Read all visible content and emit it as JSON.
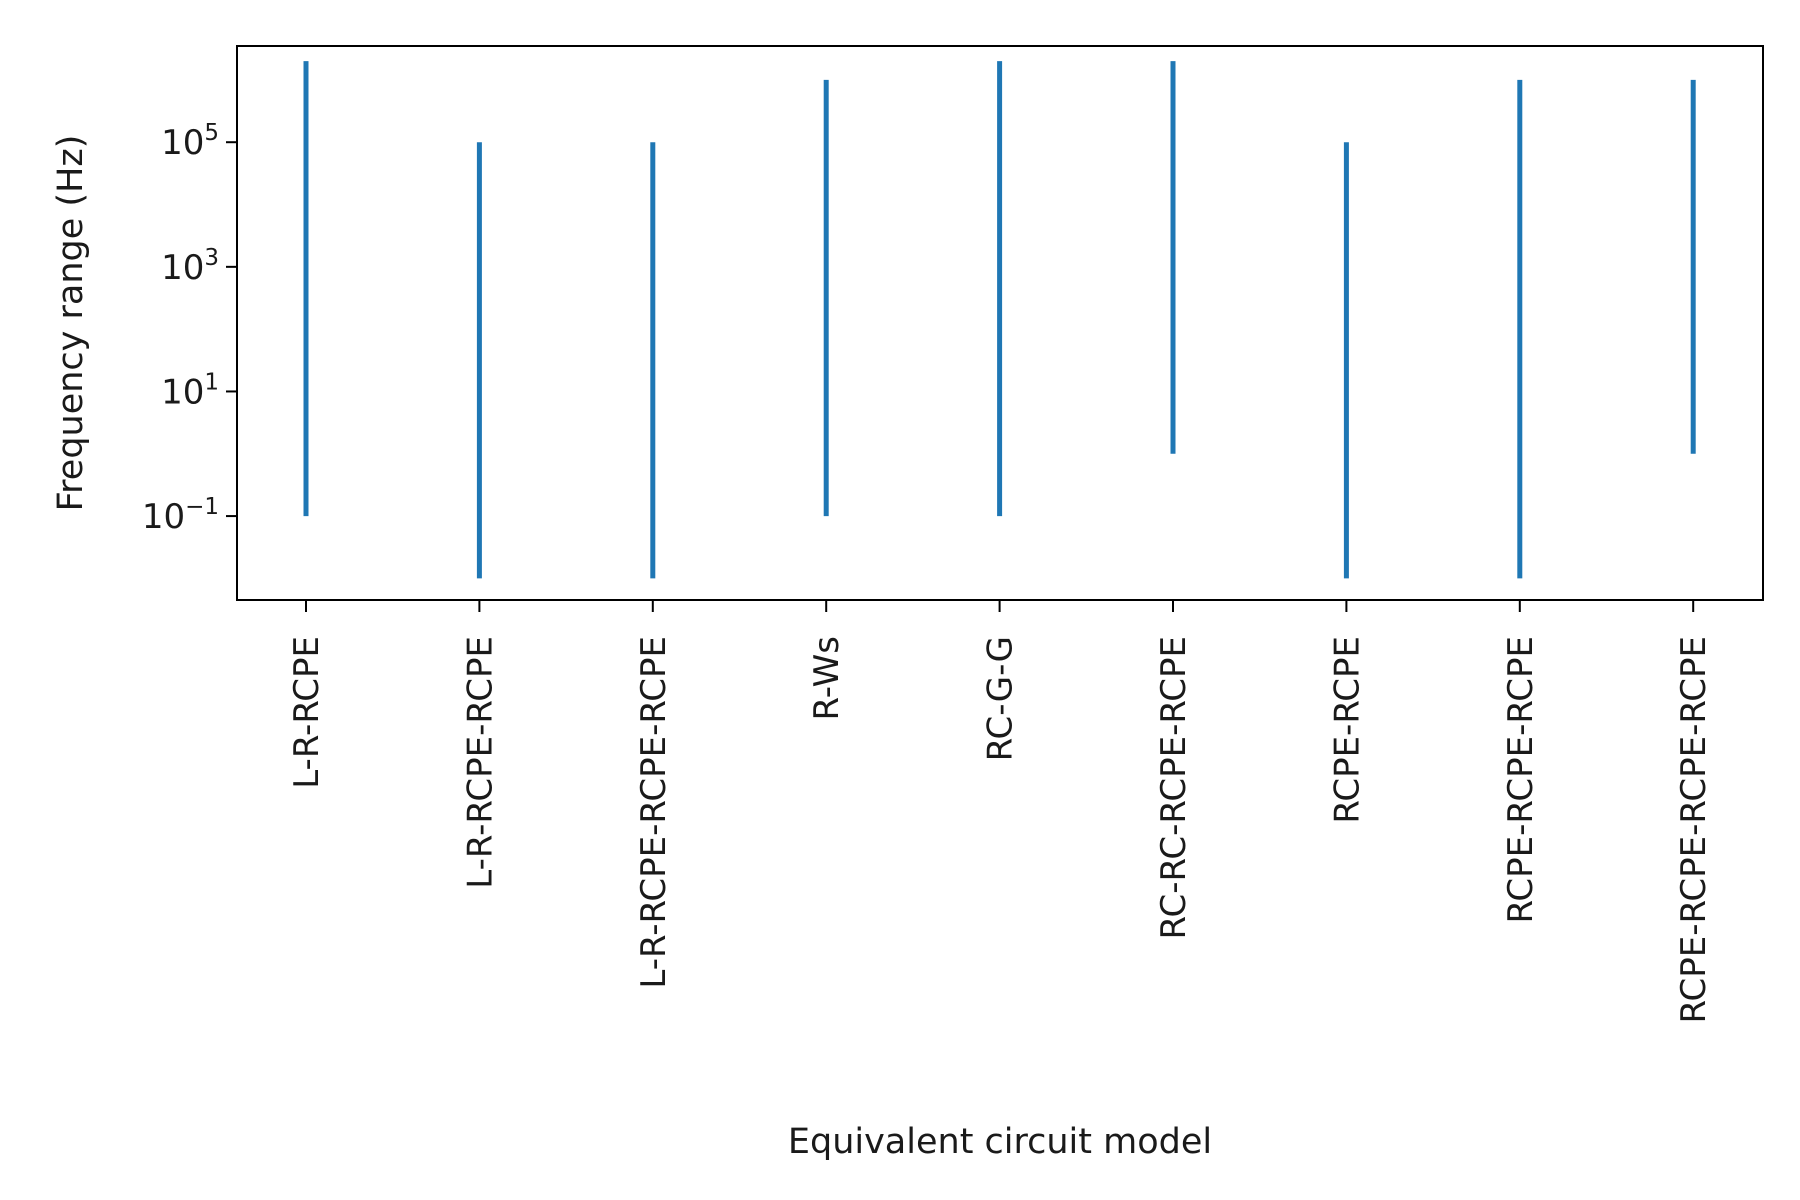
{
  "chart_data": {
    "type": "range",
    "title": "",
    "xlabel": "Equivalent circuit model",
    "ylabel": "Frequency range (Hz)",
    "yscale": "log",
    "ylim": [
      0.0045,
      3500000
    ],
    "yticks": [
      {
        "base": "10",
        "exp": "5",
        "value": 100000
      },
      {
        "base": "10",
        "exp": "3",
        "value": 1000
      },
      {
        "base": "10",
        "exp": "1",
        "value": 10
      },
      {
        "base": "10",
        "exp": "−1",
        "value": 0.1
      }
    ],
    "grid": false,
    "legend": "none",
    "color": "#1f77b4",
    "categories": [
      "L-R-RCPE",
      "L-R-RCPE-RCPE",
      "L-R-RCPE-RCPE-RCPE",
      "R-Ws",
      "RC-G-G",
      "RC-RC-RCPE-RCPE",
      "RCPE-RCPE",
      "RCPE-RCPE-RCPE",
      "RCPE-RCPE-RCPE-RCPE"
    ],
    "ranges": [
      {
        "min": 0.1,
        "max": 2000000
      },
      {
        "min": 0.01,
        "max": 100000
      },
      {
        "min": 0.01,
        "max": 100000
      },
      {
        "min": 0.1,
        "max": 1000000
      },
      {
        "min": 0.1,
        "max": 2000000
      },
      {
        "min": 1,
        "max": 2000000
      },
      {
        "min": 0.01,
        "max": 100000
      },
      {
        "min": 0.01,
        "max": 1000000
      },
      {
        "min": 1,
        "max": 1000000
      }
    ]
  }
}
